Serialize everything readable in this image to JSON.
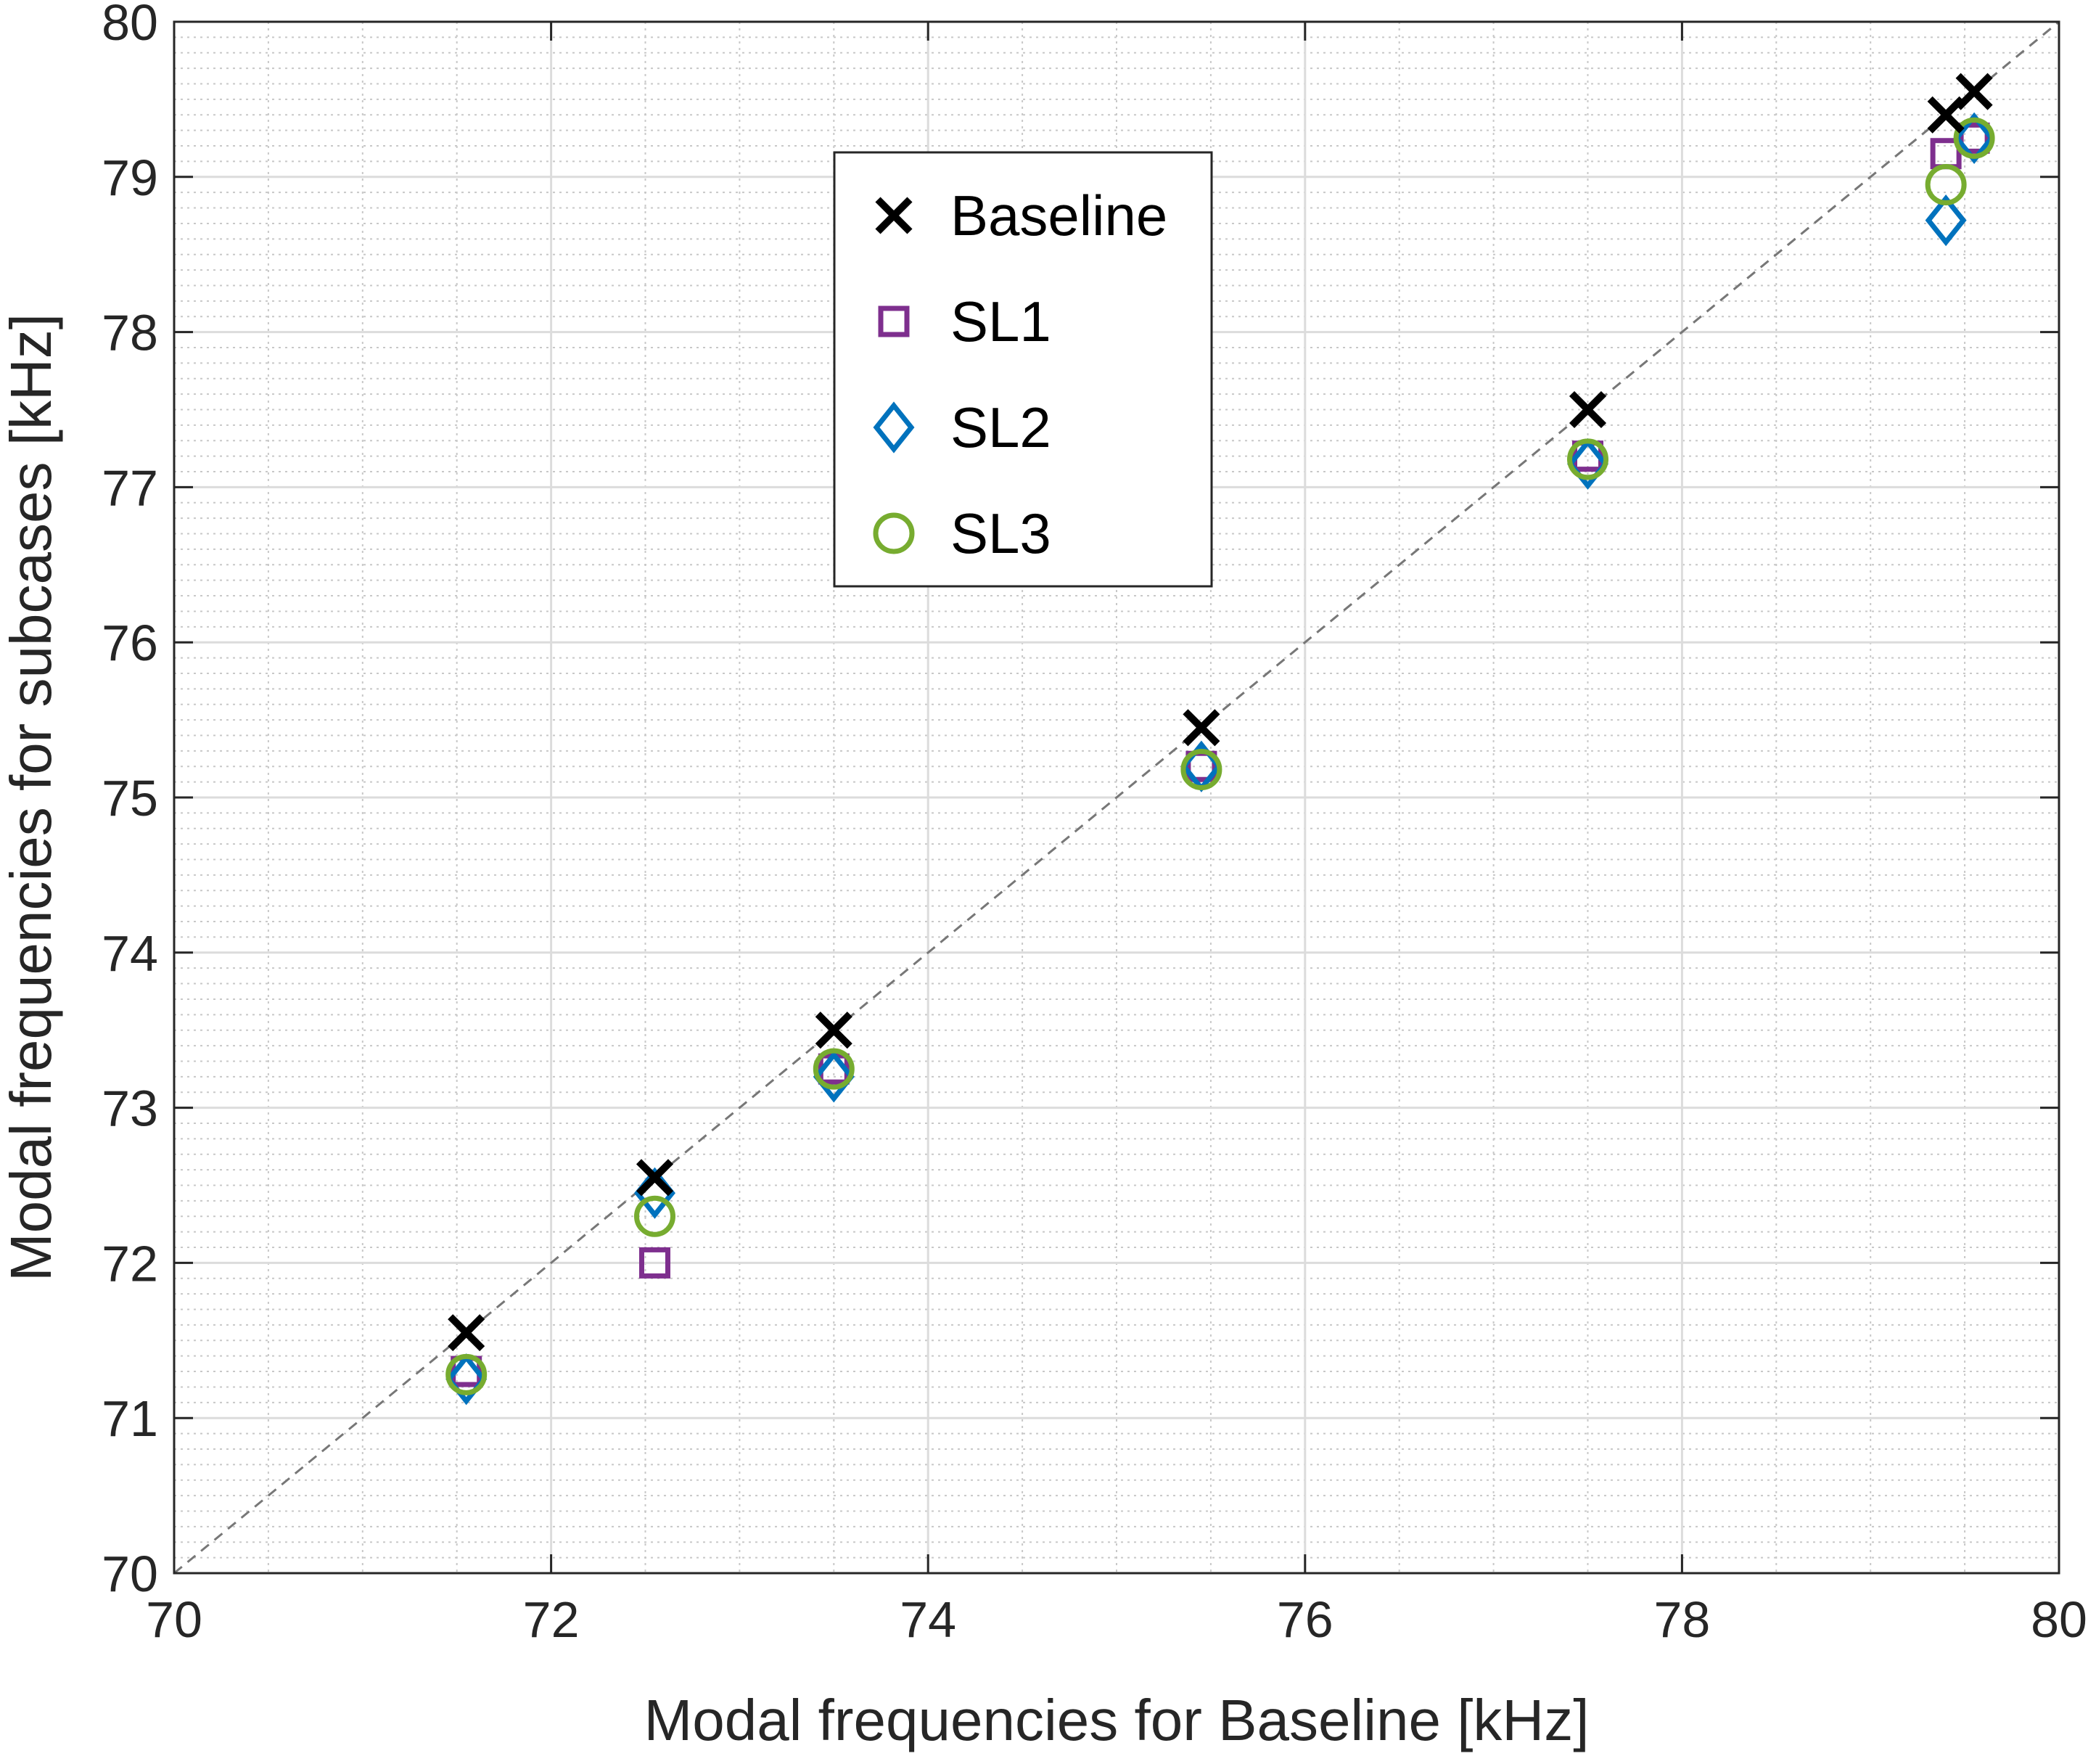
{
  "chart_data": {
    "type": "scatter",
    "title": "",
    "xlabel": "Modal frequencies for Baseline [kHz]",
    "ylabel": "Modal frequencies for subcases [kHz]",
    "xlim": [
      70,
      80
    ],
    "ylim": [
      70,
      80
    ],
    "x_ticks": [
      "70",
      "72",
      "74",
      "76",
      "78",
      "80"
    ],
    "y_ticks": [
      "70",
      "71",
      "72",
      "73",
      "74",
      "75",
      "76",
      "77",
      "78",
      "79",
      "80"
    ],
    "grid": "major and minor, dotted minor",
    "reference_line": {
      "style": "dashed",
      "color": "#777777",
      "from": [
        70,
        70
      ],
      "to": [
        80,
        80
      ]
    },
    "legend_position": "upper-middle",
    "series": [
      {
        "name": "Baseline",
        "marker": "x",
        "color": "#000000",
        "points": [
          [
            71.55,
            71.55
          ],
          [
            72.55,
            72.55
          ],
          [
            73.5,
            73.5
          ],
          [
            75.45,
            75.45
          ],
          [
            77.5,
            77.5
          ],
          [
            79.4,
            79.4
          ],
          [
            79.55,
            79.55
          ]
        ]
      },
      {
        "name": "SL1",
        "marker": "square",
        "color": "#7e2f8e",
        "points": [
          [
            71.55,
            71.3
          ],
          [
            72.55,
            72.0
          ],
          [
            73.5,
            73.25
          ],
          [
            75.45,
            75.2
          ],
          [
            77.5,
            77.2
          ],
          [
            79.4,
            79.15
          ],
          [
            79.55,
            79.25
          ]
        ]
      },
      {
        "name": "SL2",
        "marker": "diamond",
        "color": "#0072bd",
        "points": [
          [
            71.55,
            71.25
          ],
          [
            72.55,
            72.45
          ],
          [
            73.5,
            73.2
          ],
          [
            75.45,
            75.2
          ],
          [
            77.5,
            77.15
          ],
          [
            79.4,
            78.72
          ],
          [
            79.55,
            79.25
          ]
        ]
      },
      {
        "name": "SL3",
        "marker": "circle",
        "color": "#77ac30",
        "points": [
          [
            71.55,
            71.28
          ],
          [
            72.55,
            72.3
          ],
          [
            73.5,
            73.25
          ],
          [
            75.45,
            75.18
          ],
          [
            77.5,
            77.18
          ],
          [
            79.4,
            78.95
          ],
          [
            79.55,
            79.25
          ]
        ]
      }
    ]
  }
}
